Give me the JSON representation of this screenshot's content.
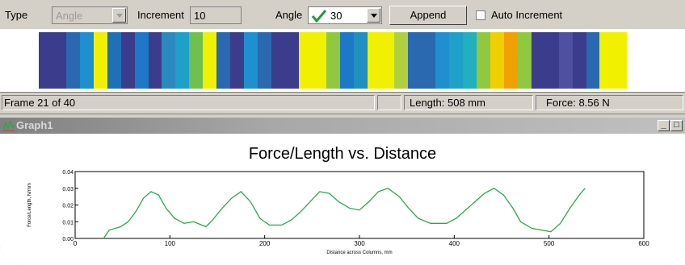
{
  "toolbar": {
    "type_label": "Type",
    "type_value": "Angle",
    "increment_label": "Increment",
    "increment_value": "10",
    "angle_label": "Angle",
    "angle_value": "30",
    "append_label": "Append",
    "auto_increment_label": "Auto Increment",
    "auto_increment_checked": false
  },
  "color_band": {
    "colors": [
      "#3c3c8c",
      "#3c3c8c",
      "#2a68b0",
      "#1e90d0",
      "#f0f000",
      "#2070b8",
      "#3c3c8c",
      "#1e78c8",
      "#3c3c8c",
      "#2a8ac0",
      "#1ea0c8",
      "#70c050",
      "#f0f000",
      "#2a68b0",
      "#3c3c8c",
      "#1e90d0",
      "#2a68b0",
      "#3c3c8c",
      "#3c3c8c",
      "#f0f000",
      "#f0f000",
      "#90c840",
      "#1e78c8",
      "#2090c0",
      "#f0f000",
      "#f0f000",
      "#b0d040",
      "#2a68b0",
      "#2a68b0",
      "#1e90d0",
      "#1ea0c8",
      "#20b0c0",
      "#90c840",
      "#f0d000",
      "#f0a000",
      "#90c840",
      "#3c3c8c",
      "#3c3c8c",
      "#5050a0",
      "#3c3c8c",
      "#2a68b0",
      "#f0f000",
      "#f0f000"
    ]
  },
  "status": {
    "frame": "Frame 21 of 40",
    "length": "Length: 508 mm",
    "force": "Force: 8.56 N"
  },
  "graph_window": {
    "title": "Graph1",
    "minimize": "_",
    "maximize": "□"
  },
  "chart_data": {
    "type": "line",
    "title": "Force/Length vs. Distance",
    "xlabel": "Distance across Columns, mm",
    "ylabel": "Force/Length, N/mm",
    "xlim": [
      0,
      600
    ],
    "ylim": [
      0,
      0.04
    ],
    "xticks": [
      0,
      100,
      200,
      300,
      400,
      500,
      600
    ],
    "yticks": [
      "0.00",
      "0.01",
      "0.02",
      "0.03",
      "0.04"
    ],
    "line_color": "#2aa84a",
    "series": [
      {
        "x": [
          30,
          36,
          48,
          56,
          64,
          72,
          80,
          88,
          96,
          105,
          115,
          125,
          138,
          145,
          155,
          165,
          175,
          185,
          195,
          205,
          218,
          228,
          238,
          248,
          258,
          268,
          278,
          290,
          300,
          310,
          320,
          330,
          342,
          352,
          362,
          375,
          392,
          402,
          412,
          422,
          432,
          442,
          452,
          462,
          470,
          482,
          492,
          502,
          512,
          522,
          532,
          538
        ],
        "y": [
          0.0,
          0.005,
          0.007,
          0.01,
          0.016,
          0.024,
          0.028,
          0.026,
          0.018,
          0.012,
          0.009,
          0.01,
          0.007,
          0.011,
          0.018,
          0.024,
          0.028,
          0.022,
          0.012,
          0.008,
          0.008,
          0.011,
          0.016,
          0.022,
          0.028,
          0.027,
          0.022,
          0.018,
          0.017,
          0.022,
          0.028,
          0.03,
          0.025,
          0.018,
          0.012,
          0.009,
          0.009,
          0.012,
          0.017,
          0.022,
          0.027,
          0.03,
          0.026,
          0.018,
          0.01,
          0.006,
          0.005,
          0.004,
          0.009,
          0.018,
          0.026,
          0.03
        ]
      }
    ]
  }
}
